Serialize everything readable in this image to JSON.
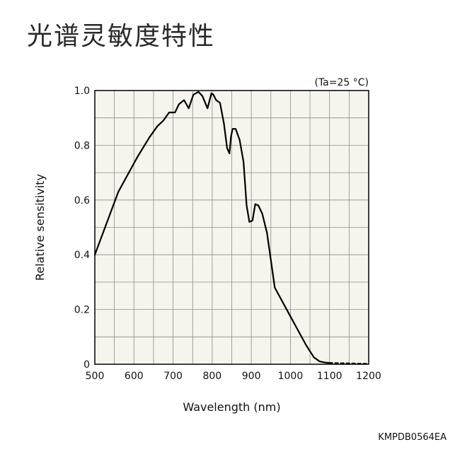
{
  "page": {
    "title": "光谱灵敏度特性",
    "doc_code": "KMPDB0564EA"
  },
  "chart_data": {
    "type": "line",
    "condition": "(Ta=25 °C)",
    "xlabel": "Wavelength (nm)",
    "ylabel": "Relative sensitivity",
    "xlim": [
      500,
      1200
    ],
    "ylim": [
      0,
      1.0
    ],
    "xticks": [
      500,
      600,
      700,
      800,
      900,
      1000,
      1100,
      1200
    ],
    "xtick_labels": [
      "500",
      "600",
      "700",
      "800",
      "900",
      "1000",
      "1100",
      "1200"
    ],
    "yticks": [
      0,
      0.2,
      0.4,
      0.6,
      0.8,
      1.0
    ],
    "ytick_labels": [
      "0",
      "0.2",
      "0.4",
      "0.6",
      "0.8",
      "1.0"
    ],
    "grid": true,
    "plot_bg": "#f6f4ec",
    "line_color": "#000000",
    "series": [
      {
        "x": [
          500,
          560,
          610,
          640,
          660,
          675,
          690,
          705,
          715,
          728,
          740,
          752,
          765,
          775,
          788,
          798,
          803,
          810,
          820,
          830,
          838,
          844,
          848,
          852,
          860,
          870,
          880,
          888,
          895,
          903,
          910,
          918,
          928,
          940,
          960,
          1000,
          1040,
          1060,
          1075,
          1090,
          1100
        ],
        "y": [
          0.4,
          0.63,
          0.76,
          0.83,
          0.87,
          0.89,
          0.92,
          0.92,
          0.95,
          0.965,
          0.935,
          0.985,
          0.995,
          0.98,
          0.935,
          0.99,
          0.985,
          0.965,
          0.955,
          0.88,
          0.79,
          0.77,
          0.83,
          0.86,
          0.86,
          0.82,
          0.74,
          0.58,
          0.52,
          0.525,
          0.585,
          0.58,
          0.55,
          0.48,
          0.28,
          0.175,
          0.07,
          0.025,
          0.01,
          0.006,
          0.005
        ]
      },
      {
        "style": "dashed",
        "x": [
          1100,
          1120,
          1150,
          1180,
          1200
        ],
        "y": [
          0.005,
          0.004,
          0.003,
          0.002,
          0.002
        ]
      }
    ]
  }
}
